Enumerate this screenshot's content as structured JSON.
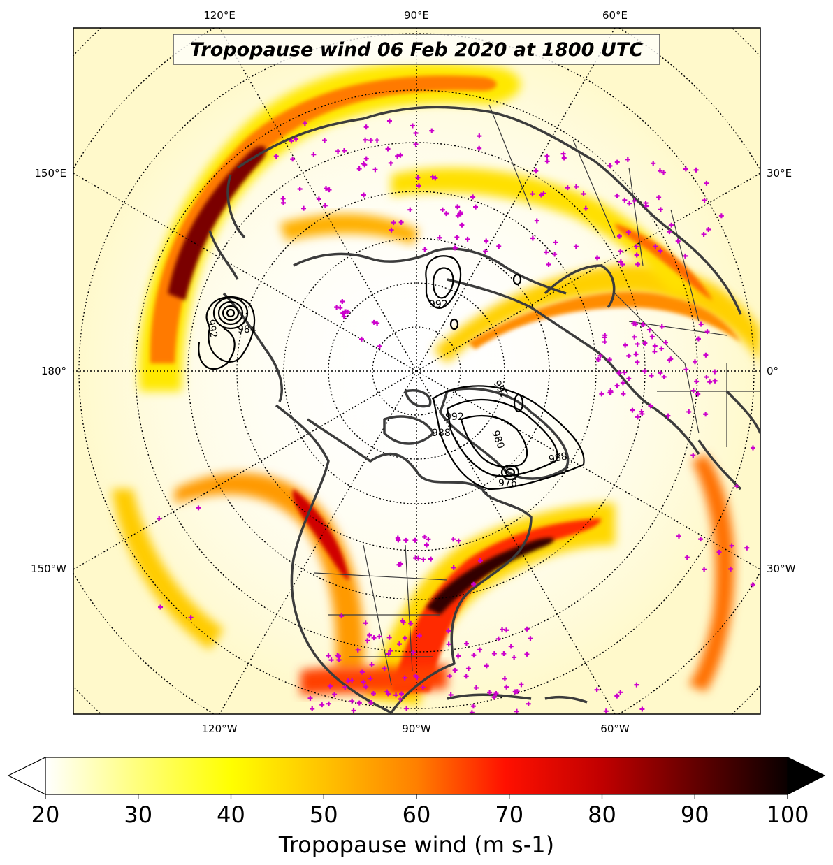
{
  "title": "Tropopause wind 06 Feb 2020 at 1800 UTC",
  "top_lon_labels": [
    "120°E",
    "90°E",
    "60°E"
  ],
  "bottom_lon_labels": [
    "120°W",
    "90°W",
    "60°W"
  ],
  "left_lon_labels": [
    "150°E",
    "180°",
    "150°W"
  ],
  "right_lon_labels": [
    "30°E",
    "0°",
    "30°W"
  ],
  "colorbar": {
    "label": "Tropopause wind (m s-1)",
    "ticks": [
      "20",
      "30",
      "40",
      "50",
      "60",
      "70",
      "80",
      "90",
      "100"
    ],
    "min": 20,
    "max": 100,
    "extend": "both",
    "colormap": "hot_r"
  },
  "contour_labels": [
    "992",
    "984",
    "992",
    "992",
    "988",
    "980",
    "976",
    "992",
    "988"
  ],
  "colors": {
    "low_wind": "#ffffff",
    "moderate_wind": "#ffff00",
    "high_wind": "#ff0000",
    "extreme_wind": "#000000",
    "station_marker": "#cc00cc",
    "coastline": "#3c3c3c",
    "contour": "#000000"
  },
  "icons": [
    "station-plus-marker",
    "colorbar-extend-triangle"
  ]
}
